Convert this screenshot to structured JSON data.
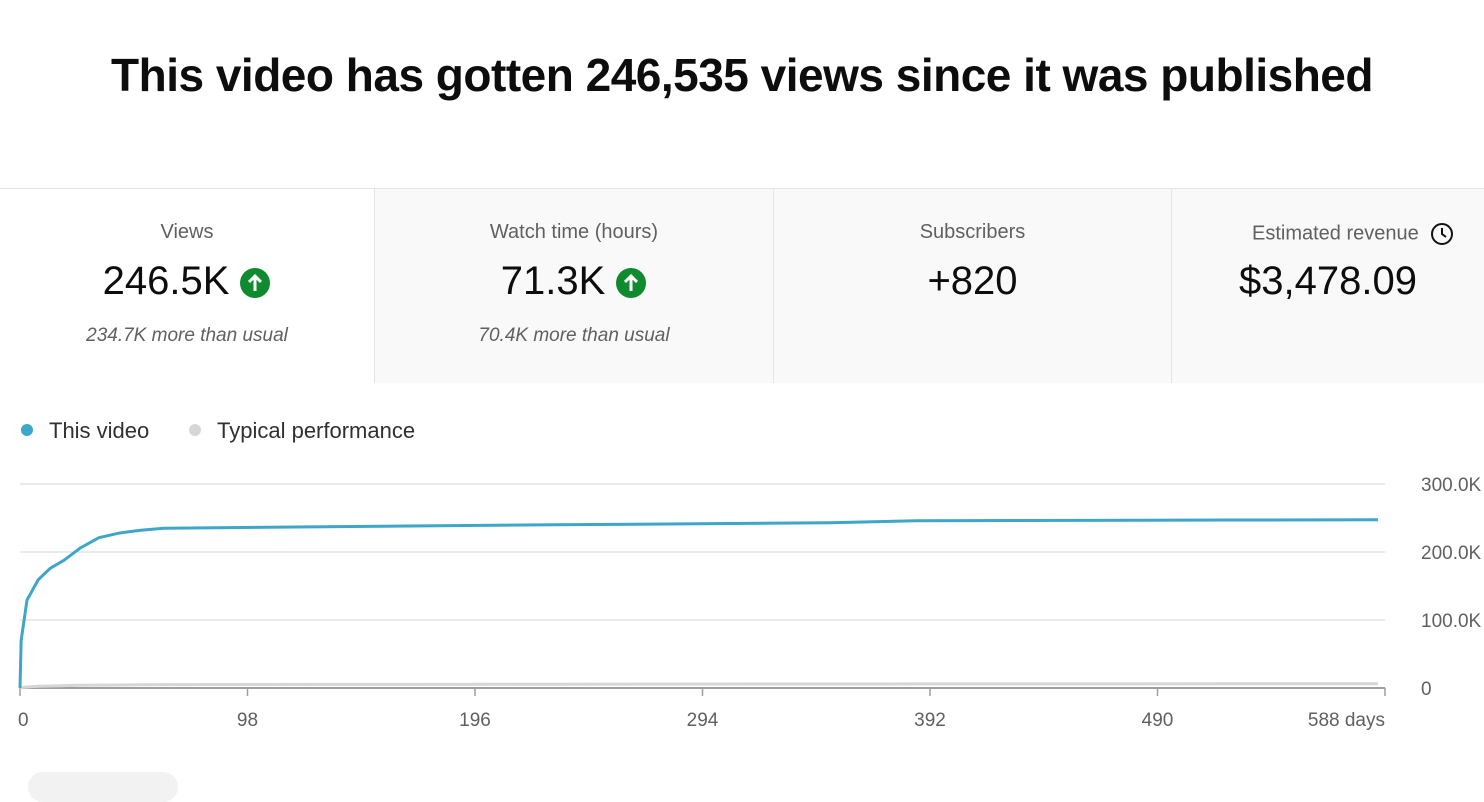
{
  "header": {
    "title": "This video has gotten 246,535 views since it was published"
  },
  "cards": [
    {
      "label": "Views",
      "value": "246.5K",
      "note": "234.7K more than usual"
    },
    {
      "label": "Watch time (hours)",
      "value": "71.3K",
      "note": "70.4K more than usual"
    },
    {
      "label": "Subscribers",
      "value": "+820"
    },
    {
      "label": "Estimated revenue",
      "value": "$3,478.09"
    }
  ],
  "chart_data": {
    "type": "line",
    "x": [
      0,
      0.5,
      3,
      7.8,
      13,
      19,
      26,
      34,
      43,
      52,
      62,
      125,
      230,
      349,
      386,
      519,
      585
    ],
    "series": [
      {
        "name": "This video",
        "color": "#3ea6c9",
        "values": [
          0,
          70000,
          129000,
          159000,
          176000,
          188000,
          206000,
          221000,
          228000,
          232000,
          235000,
          237000,
          240000,
          243000,
          246000,
          247000,
          247500
        ]
      },
      {
        "name": "Typical performance",
        "color": "#d6d6d6",
        "values": [
          0,
          500,
          1500,
          2500,
          3000,
          3500,
          4000,
          4300,
          4500,
          4700,
          4900,
          5300,
          5600,
          5900,
          6000,
          6200,
          6300
        ]
      }
    ],
    "xlim": [
      0,
      588
    ],
    "xticks": [
      0,
      98,
      196,
      294,
      392,
      490,
      {
        "value": 588,
        "label": "588 days"
      }
    ],
    "ylim": [
      0,
      300000
    ],
    "yticks": [
      0,
      {
        "value": 100000,
        "label": "100.0K"
      },
      {
        "value": 200000,
        "label": "200.0K"
      },
      {
        "value": 300000,
        "label": "300.0K"
      }
    ],
    "grid": true
  }
}
